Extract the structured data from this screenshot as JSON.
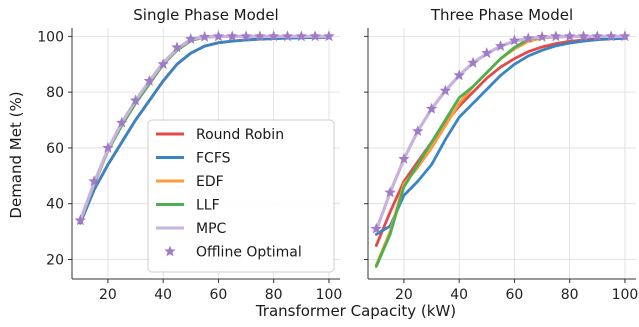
{
  "figure": {
    "xlabel": "Transformer Capacity (kW)",
    "ylabel": "Demand Met (%)"
  },
  "chart_data": [
    {
      "type": "line",
      "title": "Single Phase Model",
      "xlabel": "Transformer Capacity (kW)",
      "ylabel": "Demand Met (%)",
      "xlim": [
        7,
        104
      ],
      "ylim": [
        13,
        103
      ],
      "xticks": [
        20,
        40,
        60,
        80,
        100
      ],
      "yticks": [
        20,
        40,
        60,
        80,
        100
      ],
      "grid": true,
      "legend": "lower-right",
      "x": [
        10,
        15,
        20,
        25,
        30,
        35,
        40,
        45,
        50,
        55,
        60,
        65,
        70,
        75,
        80,
        85,
        90,
        95,
        100
      ],
      "series": [
        {
          "name": "Round Robin",
          "color": "#e24a4a",
          "values": [
            33,
            45,
            54,
            62,
            70,
            77,
            84,
            90,
            94,
            96.5,
            97.7,
            98.3,
            98.7,
            99,
            99.2,
            99.4,
            99.5,
            99.6,
            99.7
          ]
        },
        {
          "name": "FCFS",
          "color": "#3a84c4",
          "values": [
            33,
            45,
            54,
            62,
            70,
            77,
            84,
            90,
            94,
            96.5,
            97.7,
            98.3,
            98.7,
            99,
            99.2,
            99.4,
            99.5,
            99.6,
            99.7
          ]
        },
        {
          "name": "EDF",
          "color": "#ff9a3c",
          "values": [
            34,
            47,
            59,
            68,
            76,
            83,
            90,
            95,
            98.5,
            99.7,
            100,
            100,
            100,
            100,
            100,
            100,
            100,
            100,
            100
          ]
        },
        {
          "name": "LLF",
          "color": "#4caf50",
          "values": [
            34,
            47,
            59,
            68,
            76,
            83,
            90,
            95,
            98.5,
            99.7,
            100,
            100,
            100,
            100,
            100,
            100,
            100,
            100,
            100
          ]
        },
        {
          "name": "MPC",
          "color": "#c7b3dd",
          "values": [
            34,
            47.5,
            59.5,
            69,
            77,
            84,
            90.5,
            95.5,
            99,
            99.8,
            100,
            100,
            100,
            100,
            100,
            100,
            100,
            100,
            100
          ]
        },
        {
          "name": "Offline Optimal",
          "color": "#a07cc5",
          "marker": "star",
          "values": [
            34,
            48,
            60,
            69,
            77,
            84,
            90,
            96,
            99,
            99.8,
            100,
            100,
            100,
            100,
            100,
            100,
            100,
            100,
            100
          ]
        }
      ]
    },
    {
      "type": "line",
      "title": "Three Phase Model",
      "xlabel": "Transformer Capacity (kW)",
      "ylabel": "Demand Met (%)",
      "xlim": [
        7,
        104
      ],
      "ylim": [
        13,
        103
      ],
      "xticks": [
        20,
        40,
        60,
        80,
        100
      ],
      "yticks": [
        20,
        40,
        60,
        80,
        100
      ],
      "grid": true,
      "x": [
        10,
        15,
        20,
        25,
        30,
        35,
        40,
        45,
        50,
        55,
        60,
        65,
        70,
        75,
        80,
        85,
        90,
        95,
        100
      ],
      "series": [
        {
          "name": "Round Robin",
          "color": "#e24a4a",
          "values": [
            25,
            37,
            48,
            55,
            62,
            69,
            75,
            80,
            85,
            89,
            92,
            94.5,
            96.2,
            97.4,
            98.2,
            98.7,
            99.1,
            99.4,
            99.6
          ]
        },
        {
          "name": "FCFS",
          "color": "#3a84c4",
          "values": [
            29,
            32,
            43,
            48,
            54,
            63,
            71,
            76,
            81,
            86,
            90,
            93,
            95,
            96.6,
            97.6,
            98.3,
            98.8,
            99.1,
            99.3
          ]
        },
        {
          "name": "EDF",
          "color": "#ff9a3c",
          "values": [
            18,
            30,
            47,
            53,
            60,
            68,
            76,
            82,
            87,
            92,
            95.5,
            98.2,
            99.4,
            99.8,
            100,
            100,
            100,
            100,
            100
          ]
        },
        {
          "name": "LLF",
          "color": "#4caf50",
          "values": [
            17.5,
            29,
            46,
            54,
            62,
            70,
            78,
            82,
            87,
            92,
            96,
            99,
            99.6,
            99.8,
            100,
            100,
            100,
            100,
            100
          ]
        },
        {
          "name": "MPC",
          "color": "#c7b3dd",
          "values": [
            30.5,
            44,
            56,
            66,
            74,
            80.5,
            86,
            90.5,
            93.8,
            96.5,
            98.3,
            99.3,
            99.7,
            99.9,
            100,
            100,
            100,
            100,
            100
          ]
        },
        {
          "name": "Offline Optimal",
          "color": "#a07cc5",
          "marker": "star",
          "values": [
            31,
            44,
            56,
            66,
            74,
            80.5,
            86,
            90.5,
            94,
            96.5,
            98.5,
            99.3,
            99.8,
            100,
            100,
            100,
            100,
            100,
            100
          ]
        }
      ]
    }
  ]
}
